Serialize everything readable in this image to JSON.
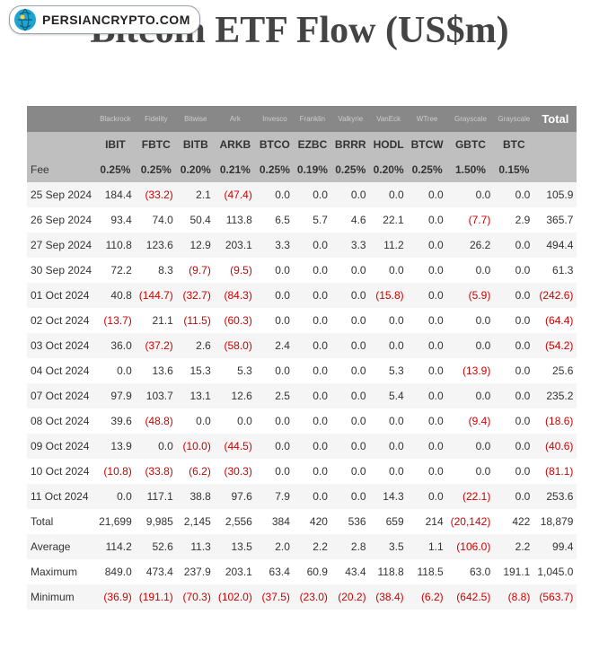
{
  "logo_text": "PERSIANCRYPTO.COM",
  "title": "Bitcoin ETF Flow (US$m)",
  "issuers": [
    "Blackrock",
    "Fidelity",
    "Bitwise",
    "Ark",
    "Invesco",
    "Franklin",
    "Valkyrie",
    "VanEck",
    "WTree",
    "Grayscale",
    "Grayscale"
  ],
  "tickers": [
    "IBIT",
    "FBTC",
    "BITB",
    "ARKB",
    "BTCO",
    "EZBC",
    "BRRR",
    "HODL",
    "BTCW",
    "GBTC",
    "BTC"
  ],
  "fee_label": "Fee",
  "fees": [
    "0.25%",
    "0.25%",
    "0.20%",
    "0.21%",
    "0.25%",
    "0.19%",
    "0.25%",
    "0.20%",
    "0.25%",
    "1.50%",
    "0.15%"
  ],
  "total_header": "Total",
  "rows": [
    {
      "date": "25 Sep 2024",
      "v": [
        "184.4",
        "(33.2)",
        "2.1",
        "(47.4)",
        "0.0",
        "0.0",
        "0.0",
        "0.0",
        "0.0",
        "0.0",
        "0.0",
        "105.9"
      ]
    },
    {
      "date": "26 Sep 2024",
      "v": [
        "93.4",
        "74.0",
        "50.4",
        "113.8",
        "6.5",
        "5.7",
        "4.6",
        "22.1",
        "0.0",
        "(7.7)",
        "2.9",
        "365.7"
      ]
    },
    {
      "date": "27 Sep 2024",
      "v": [
        "110.8",
        "123.6",
        "12.9",
        "203.1",
        "3.3",
        "0.0",
        "3.3",
        "11.2",
        "0.0",
        "26.2",
        "0.0",
        "494.4"
      ]
    },
    {
      "date": "30 Sep 2024",
      "v": [
        "72.2",
        "8.3",
        "(9.7)",
        "(9.5)",
        "0.0",
        "0.0",
        "0.0",
        "0.0",
        "0.0",
        "0.0",
        "0.0",
        "61.3"
      ]
    },
    {
      "date": "01 Oct 2024",
      "v": [
        "40.8",
        "(144.7)",
        "(32.7)",
        "(84.3)",
        "0.0",
        "0.0",
        "0.0",
        "(15.8)",
        "0.0",
        "(5.9)",
        "0.0",
        "(242.6)"
      ]
    },
    {
      "date": "02 Oct 2024",
      "v": [
        "(13.7)",
        "21.1",
        "(11.5)",
        "(60.3)",
        "0.0",
        "0.0",
        "0.0",
        "0.0",
        "0.0",
        "0.0",
        "0.0",
        "(64.4)"
      ]
    },
    {
      "date": "03 Oct 2024",
      "v": [
        "36.0",
        "(37.2)",
        "2.6",
        "(58.0)",
        "2.4",
        "0.0",
        "0.0",
        "0.0",
        "0.0",
        "0.0",
        "0.0",
        "(54.2)"
      ]
    },
    {
      "date": "04 Oct 2024",
      "v": [
        "0.0",
        "13.6",
        "15.3",
        "5.3",
        "0.0",
        "0.0",
        "0.0",
        "5.3",
        "0.0",
        "(13.9)",
        "0.0",
        "25.6"
      ]
    },
    {
      "date": "07 Oct 2024",
      "v": [
        "97.9",
        "103.7",
        "13.1",
        "12.6",
        "2.5",
        "0.0",
        "0.0",
        "5.4",
        "0.0",
        "0.0",
        "0.0",
        "235.2"
      ]
    },
    {
      "date": "08 Oct 2024",
      "v": [
        "39.6",
        "(48.8)",
        "0.0",
        "0.0",
        "0.0",
        "0.0",
        "0.0",
        "0.0",
        "0.0",
        "(9.4)",
        "0.0",
        "(18.6)"
      ]
    },
    {
      "date": "09 Oct 2024",
      "v": [
        "13.9",
        "0.0",
        "(10.0)",
        "(44.5)",
        "0.0",
        "0.0",
        "0.0",
        "0.0",
        "0.0",
        "0.0",
        "0.0",
        "(40.6)"
      ]
    },
    {
      "date": "10 Oct 2024",
      "v": [
        "(10.8)",
        "(33.8)",
        "(6.2)",
        "(30.3)",
        "0.0",
        "0.0",
        "0.0",
        "0.0",
        "0.0",
        "0.0",
        "0.0",
        "(81.1)"
      ]
    },
    {
      "date": "11 Oct 2024",
      "v": [
        "0.0",
        "117.1",
        "38.8",
        "97.6",
        "7.9",
        "0.0",
        "0.0",
        "14.3",
        "0.0",
        "(22.1)",
        "0.0",
        "253.6"
      ]
    }
  ],
  "summary": [
    {
      "label": "Total",
      "v": [
        "21,699",
        "9,985",
        "2,145",
        "2,556",
        "384",
        "420",
        "536",
        "659",
        "214",
        "(20,142)",
        "422",
        "18,879"
      ]
    },
    {
      "label": "Average",
      "v": [
        "114.2",
        "52.6",
        "11.3",
        "13.5",
        "2.0",
        "2.2",
        "2.8",
        "3.5",
        "1.1",
        "(106.0)",
        "2.2",
        "99.4"
      ]
    },
    {
      "label": "Maximum",
      "v": [
        "849.0",
        "473.4",
        "237.9",
        "203.1",
        "63.4",
        "60.9",
        "43.4",
        "118.8",
        "118.5",
        "63.0",
        "191.1",
        "1,045.0"
      ]
    },
    {
      "label": "Minimum",
      "v": [
        "(36.9)",
        "(191.1)",
        "(70.3)",
        "(102.0)",
        "(37.5)",
        "(23.0)",
        "(20.2)",
        "(38.4)",
        "(6.2)",
        "(642.5)",
        "(8.8)",
        "(563.7)"
      ]
    }
  ]
}
